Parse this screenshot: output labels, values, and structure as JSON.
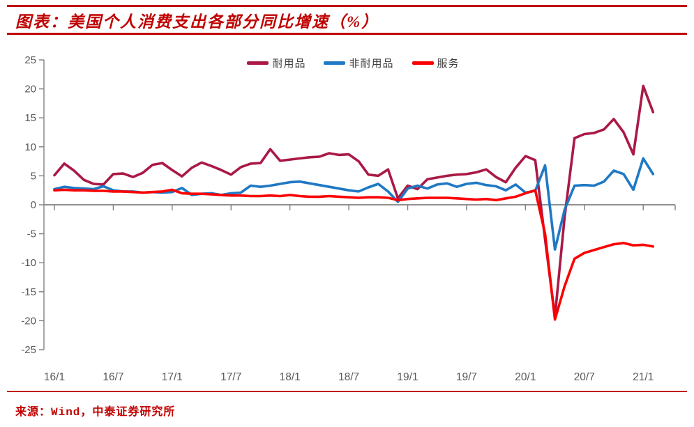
{
  "page": {
    "title": "图表：美国个人消费支出各部分同比增速（%）",
    "source": "来源：Wind，中泰证券研究所",
    "accent_color": "#C00000"
  },
  "chart_data": {
    "type": "line",
    "title": "美国个人消费支出各部分同比增速（%）",
    "frequency": "monthly",
    "x_start": "2016/1",
    "x_end": "2021/2",
    "x_tick_labels": [
      "16/1",
      "16/7",
      "17/1",
      "17/7",
      "18/1",
      "18/7",
      "19/1",
      "19/7",
      "20/1",
      "20/7",
      "21/1"
    ],
    "x_tick_indices": [
      0,
      6,
      12,
      18,
      24,
      30,
      36,
      42,
      48,
      54,
      60
    ],
    "ylim": [
      -25,
      25
    ],
    "y_tick_step": 5,
    "grid": "zero-line-only",
    "legend_position": "top-center",
    "axis_color": "#808080",
    "tick_label_color": "#595959",
    "series": [
      {
        "id": "durables",
        "name": "耐用品",
        "color": "#AA1946",
        "values": [
          5.1,
          7.1,
          5.9,
          4.3,
          3.6,
          3.5,
          5.3,
          5.4,
          4.8,
          5.5,
          6.9,
          7.2,
          6.0,
          4.9,
          6.4,
          7.3,
          6.7,
          6.0,
          5.2,
          6.5,
          7.1,
          7.2,
          9.6,
          7.6,
          7.8,
          8.0,
          8.2,
          8.3,
          8.9,
          8.6,
          8.7,
          7.5,
          5.2,
          5.0,
          6.1,
          1.1,
          3.3,
          2.7,
          4.4,
          4.7,
          5.0,
          5.2,
          5.3,
          5.6,
          6.1,
          4.8,
          3.9,
          6.4,
          8.4,
          7.7,
          -6.0,
          -19.3,
          -2.0,
          11.5,
          12.2,
          12.4,
          13.0,
          14.8,
          12.5,
          8.7,
          20.5,
          16.0
        ]
      },
      {
        "id": "nondurables",
        "name": "非耐用品",
        "color": "#1F78C4",
        "values": [
          2.7,
          3.1,
          2.9,
          2.8,
          2.7,
          3.2,
          2.5,
          2.3,
          2.3,
          2.1,
          2.2,
          2.1,
          2.2,
          2.9,
          1.7,
          1.9,
          2.0,
          1.7,
          2.0,
          2.1,
          3.3,
          3.1,
          3.3,
          3.6,
          3.9,
          4.0,
          3.7,
          3.4,
          3.1,
          2.8,
          2.5,
          2.3,
          3.0,
          3.6,
          2.3,
          0.5,
          2.8,
          3.3,
          2.8,
          3.5,
          3.7,
          3.1,
          3.6,
          3.8,
          3.4,
          3.2,
          2.5,
          3.5,
          2.1,
          2.4,
          6.8,
          -7.7,
          -0.8,
          3.3,
          3.4,
          3.3,
          4.0,
          5.9,
          5.3,
          2.6,
          8.0,
          5.3
        ]
      },
      {
        "id": "services",
        "name": "服务",
        "color": "#FB0000",
        "values": [
          2.5,
          2.6,
          2.5,
          2.5,
          2.4,
          2.4,
          2.3,
          2.3,
          2.2,
          2.1,
          2.2,
          2.3,
          2.6,
          2.0,
          1.9,
          1.9,
          1.8,
          1.7,
          1.6,
          1.6,
          1.5,
          1.5,
          1.6,
          1.5,
          1.7,
          1.5,
          1.4,
          1.4,
          1.5,
          1.4,
          1.3,
          1.2,
          1.3,
          1.3,
          1.2,
          0.8,
          1.0,
          1.1,
          1.2,
          1.2,
          1.2,
          1.1,
          1.0,
          0.9,
          1.0,
          0.8,
          1.1,
          1.4,
          2.0,
          2.5,
          -5.0,
          -19.8,
          -14.0,
          -9.3,
          -8.3,
          -7.8,
          -7.3,
          -6.8,
          -6.6,
          -7.0,
          -6.9,
          -7.2
        ]
      }
    ]
  }
}
